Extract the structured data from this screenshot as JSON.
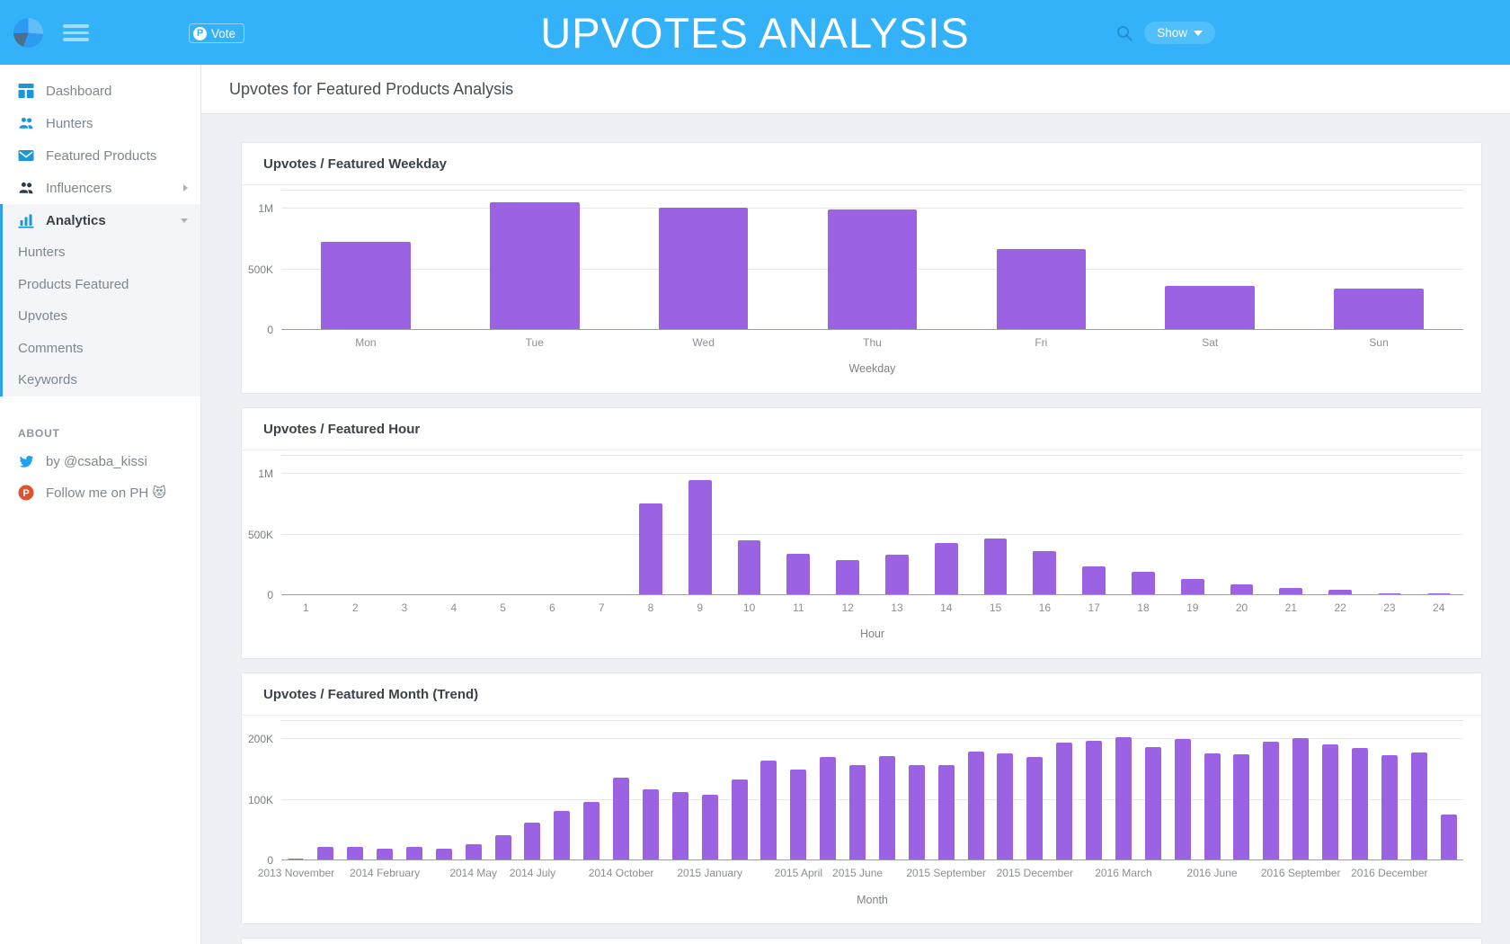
{
  "header": {
    "title": "UPVOTES ANALYSIS",
    "vote_badge": {
      "logo_letter": "P",
      "label": "Vote"
    },
    "show_button": "Show"
  },
  "sidebar": {
    "items": [
      {
        "label": "Dashboard"
      },
      {
        "label": "Hunters"
      },
      {
        "label": "Featured Products"
      },
      {
        "label": "Influencers"
      },
      {
        "label": "Analytics"
      }
    ],
    "sub_items": [
      "Hunters",
      "Products Featured",
      "Upvotes",
      "Comments",
      "Keywords"
    ],
    "about": {
      "heading": "ABOUT",
      "twitter": "by @csaba_kissi",
      "ph": "Follow me on PH 😻"
    }
  },
  "page": {
    "title": "Upvotes for Featured Products Analysis"
  },
  "colors": {
    "header_blue": "#34b2f9",
    "accent_blue": "#2da2ea",
    "icon_blue": "#1b96d8",
    "bar_purple": "#9c62e4",
    "twitter_blue": "#1da1f2",
    "product_hunt_red": "#da552f"
  },
  "chart_data": [
    {
      "type": "bar",
      "title": "Upvotes / Featured Weekday",
      "xlabel": "Weekday",
      "categories": [
        "Mon",
        "Tue",
        "Wed",
        "Thu",
        "Fri",
        "Sat",
        "Sun"
      ],
      "values": [
        730000,
        1050000,
        1010000,
        995000,
        670000,
        365000,
        340000
      ],
      "yticks": [
        {
          "label": "0",
          "value": 0
        },
        {
          "label": "500K",
          "value": 500000
        },
        {
          "label": "1M",
          "value": 1000000
        }
      ],
      "ylim": [
        0,
        1150000
      ],
      "bar_width_pct": 53,
      "grid": true,
      "legend": "none"
    },
    {
      "type": "bar",
      "title": "Upvotes / Featured Hour",
      "xlabel": "Hour",
      "categories": [
        "1",
        "2",
        "3",
        "4",
        "5",
        "6",
        "7",
        "8",
        "9",
        "10",
        "11",
        "12",
        "13",
        "14",
        "15",
        "16",
        "17",
        "18",
        "19",
        "20",
        "21",
        "22",
        "23",
        "24"
      ],
      "values": [
        8000,
        7000,
        8000,
        6000,
        8000,
        2000,
        3000,
        760000,
        950000,
        452000,
        345000,
        288000,
        333000,
        428000,
        470000,
        365000,
        238000,
        192000,
        133000,
        88000,
        57000,
        43000,
        18000,
        15000
      ],
      "yticks": [
        {
          "label": "0",
          "value": 0
        },
        {
          "label": "500K",
          "value": 500000
        },
        {
          "label": "1M",
          "value": 1000000
        }
      ],
      "ylim": [
        0,
        1150000
      ],
      "bar_width_pct": 47,
      "grid": true,
      "legend": "none"
    },
    {
      "type": "bar",
      "title": "Upvotes / Featured Month (Trend)",
      "xlabel": "Month",
      "categories": [
        "2013 November",
        "2013 December",
        "2014 January",
        "2014 February",
        "2014 March",
        "2014 April",
        "2014 May",
        "2014 June",
        "2014 July",
        "2014 August",
        "2014 September",
        "2014 October",
        "2014 November",
        "2014 December",
        "2015 January",
        "2015 February",
        "2015 March",
        "2015 April",
        "2015 May",
        "2015 June",
        "2015 July",
        "2015 August",
        "2015 September",
        "2015 October",
        "2015 November",
        "2015 December",
        "2016 January",
        "2016 February",
        "2016 March",
        "2016 April",
        "2016 May",
        "2016 June",
        "2016 July",
        "2016 August",
        "2016 September",
        "2016 October",
        "2016 November",
        "2016 December",
        "2017 January",
        "2017 February"
      ],
      "values": [
        3000,
        23000,
        23000,
        20000,
        22000,
        20000,
        26000,
        41000,
        63000,
        82000,
        96000,
        137000,
        117000,
        113000,
        108000,
        133000,
        165000,
        150000,
        170000,
        158000,
        172000,
        158000,
        158000,
        179000,
        177000,
        170000,
        195000,
        198000,
        203000,
        187000,
        201000,
        176000,
        175000,
        196000,
        202000,
        191000,
        186000,
        174000,
        178000,
        75000
      ],
      "x_tick_indices": [
        0,
        3,
        6,
        8,
        11,
        14,
        17,
        19,
        22,
        25,
        28,
        31,
        34,
        37
      ],
      "x_tick_labels": [
        "2013 November",
        "2014 February",
        "2014 May",
        "2014 July",
        "2014 October",
        "2015 January",
        "2015 April",
        "2015 June",
        "2015 September",
        "2015 December",
        "2016 March",
        "2016 June",
        "2016 September",
        "2016 December"
      ],
      "yticks": [
        {
          "label": "0",
          "value": 0
        },
        {
          "label": "100K",
          "value": 100000
        },
        {
          "label": "200K",
          "value": 200000
        }
      ],
      "ylim": [
        0,
        230000
      ],
      "bar_width_pct": 55,
      "grid": true,
      "legend": "none"
    }
  ]
}
